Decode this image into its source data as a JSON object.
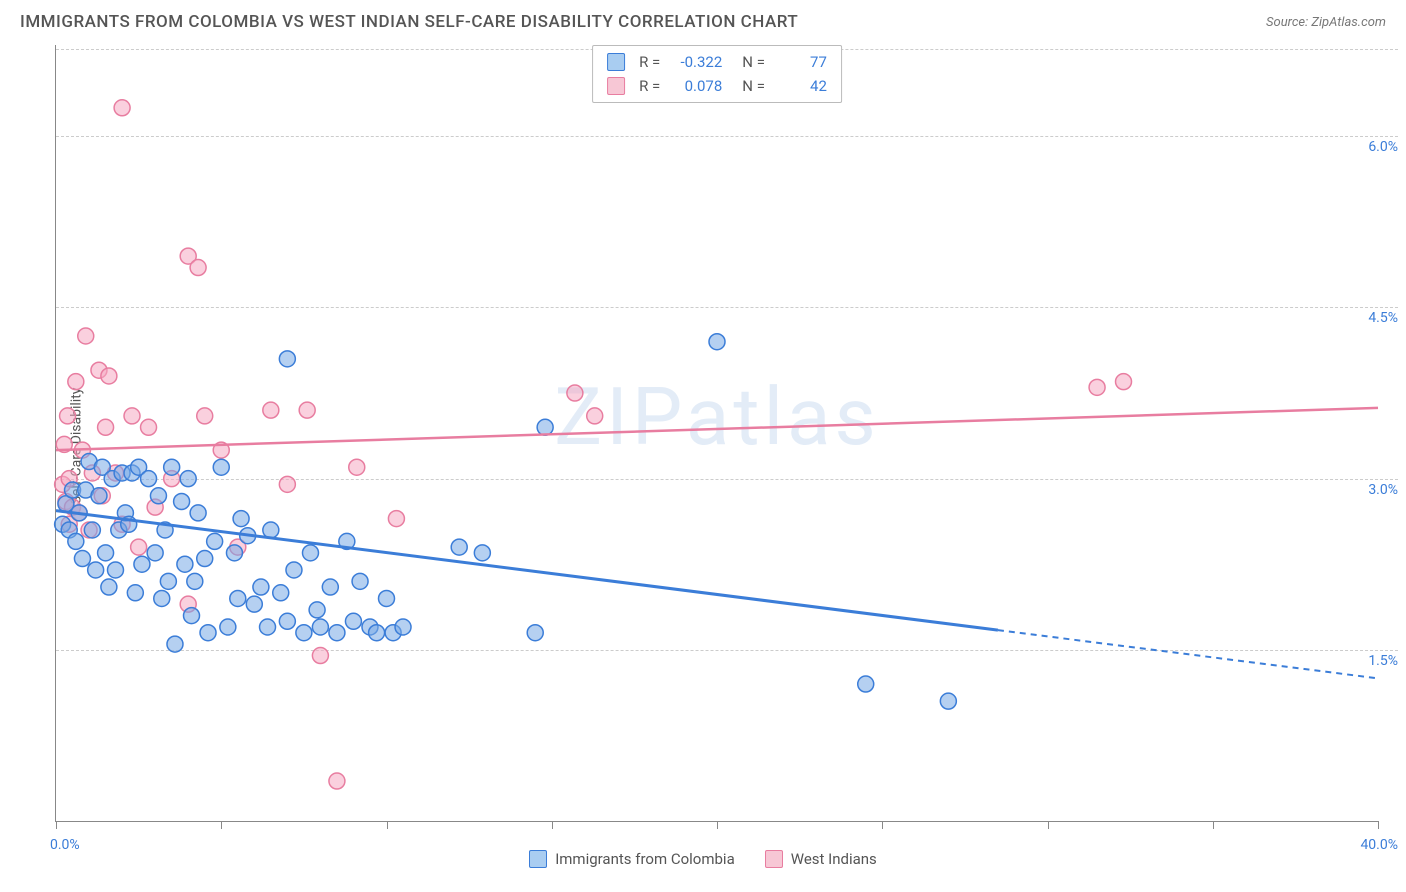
{
  "title": "IMMIGRANTS FROM COLOMBIA VS WEST INDIAN SELF-CARE DISABILITY CORRELATION CHART",
  "source_label": "Source: ZipAtlas.com",
  "watermark": "ZIPatlas",
  "ylabel": "Self-Care Disability",
  "axes": {
    "xlim": [
      0,
      40
    ],
    "ylim": [
      0,
      6.8
    ],
    "y_gridlines": [
      1.5,
      3.0,
      4.5,
      6.0
    ],
    "y_tick_labels": [
      "1.5%",
      "3.0%",
      "4.5%",
      "6.0%"
    ],
    "x_ticks": [
      0,
      5,
      10,
      15,
      20,
      25,
      30,
      35,
      40
    ],
    "x_min_label": "0.0%",
    "x_max_label": "40.0%",
    "grid_color": "#cccccc"
  },
  "legend_top": {
    "series": [
      {
        "swatch_fill": "#a9cdf1",
        "swatch_border": "#3b7dd8",
        "R": "-0.322",
        "N": "77"
      },
      {
        "swatch_fill": "#f7c7d5",
        "swatch_border": "#e87da0",
        "R": "0.078",
        "N": "42"
      }
    ],
    "r_label": "R =",
    "n_label": "N ="
  },
  "legend_bottom": {
    "items": [
      {
        "swatch_fill": "#a9cdf1",
        "swatch_border": "#3b7dd8",
        "label": "Immigrants from Colombia"
      },
      {
        "swatch_fill": "#f7c7d5",
        "swatch_border": "#e87da0",
        "label": "West Indians"
      }
    ]
  },
  "series": {
    "colombia": {
      "color": "#3b7dd8",
      "fill": "rgba(120,170,230,0.55)",
      "marker_r": 8,
      "regression": {
        "x1": 0,
        "y1": 2.72,
        "x_solid_end": 28.5,
        "x2": 40,
        "y2": 1.25
      },
      "points": [
        [
          0.2,
          2.6
        ],
        [
          0.3,
          2.78
        ],
        [
          0.4,
          2.55
        ],
        [
          0.5,
          2.9
        ],
        [
          0.6,
          2.45
        ],
        [
          0.7,
          2.7
        ],
        [
          0.8,
          2.3
        ],
        [
          0.9,
          2.9
        ],
        [
          1.0,
          3.15
        ],
        [
          1.1,
          2.55
        ],
        [
          1.3,
          2.85
        ],
        [
          1.4,
          3.1
        ],
        [
          1.5,
          2.35
        ],
        [
          1.6,
          2.05
        ],
        [
          1.7,
          3.0
        ],
        [
          1.8,
          2.2
        ],
        [
          1.9,
          2.55
        ],
        [
          2.0,
          3.05
        ],
        [
          2.1,
          2.7
        ],
        [
          2.3,
          3.05
        ],
        [
          2.4,
          2.0
        ],
        [
          2.5,
          3.1
        ],
        [
          2.6,
          2.25
        ],
        [
          2.8,
          3.0
        ],
        [
          3.0,
          2.35
        ],
        [
          3.1,
          2.85
        ],
        [
          3.3,
          2.55
        ],
        [
          3.4,
          2.1
        ],
        [
          3.5,
          3.1
        ],
        [
          3.6,
          1.55
        ],
        [
          3.8,
          2.8
        ],
        [
          3.9,
          2.25
        ],
        [
          4.0,
          3.0
        ],
        [
          4.1,
          1.8
        ],
        [
          4.3,
          2.7
        ],
        [
          4.5,
          2.3
        ],
        [
          4.6,
          1.65
        ],
        [
          4.8,
          2.45
        ],
        [
          5.0,
          3.1
        ],
        [
          5.2,
          1.7
        ],
        [
          5.4,
          2.35
        ],
        [
          5.5,
          1.95
        ],
        [
          5.8,
          2.5
        ],
        [
          6.0,
          1.9
        ],
        [
          6.2,
          2.05
        ],
        [
          6.4,
          1.7
        ],
        [
          6.5,
          2.55
        ],
        [
          6.8,
          2.0
        ],
        [
          7.0,
          4.05
        ],
        [
          7.0,
          1.75
        ],
        [
          7.2,
          2.2
        ],
        [
          7.5,
          1.65
        ],
        [
          7.7,
          2.35
        ],
        [
          7.9,
          1.85
        ],
        [
          8.0,
          1.7
        ],
        [
          8.3,
          2.05
        ],
        [
          8.5,
          1.65
        ],
        [
          8.8,
          2.45
        ],
        [
          9.0,
          1.75
        ],
        [
          9.2,
          2.1
        ],
        [
          9.5,
          1.7
        ],
        [
          9.7,
          1.65
        ],
        [
          10.0,
          1.95
        ],
        [
          10.2,
          1.65
        ],
        [
          10.5,
          1.7
        ],
        [
          12.2,
          2.4
        ],
        [
          12.9,
          2.35
        ],
        [
          14.5,
          1.65
        ],
        [
          14.8,
          3.45
        ],
        [
          20.0,
          4.2
        ],
        [
          24.5,
          1.2
        ],
        [
          27.0,
          1.05
        ],
        [
          1.2,
          2.2
        ],
        [
          2.2,
          2.6
        ],
        [
          3.2,
          1.95
        ],
        [
          4.2,
          2.1
        ],
        [
          5.6,
          2.65
        ]
      ]
    },
    "west_indian": {
      "color": "#e87da0",
      "fill": "rgba(245,170,195,0.55)",
      "marker_r": 8,
      "regression": {
        "x1": 0,
        "y1": 3.25,
        "x2": 40,
        "y2": 3.62
      },
      "points": [
        [
          0.2,
          2.95
        ],
        [
          0.25,
          3.3
        ],
        [
          0.3,
          2.8
        ],
        [
          0.35,
          3.55
        ],
        [
          0.4,
          3.0
        ],
        [
          0.5,
          2.75
        ],
        [
          0.6,
          3.85
        ],
        [
          0.7,
          2.7
        ],
        [
          0.8,
          3.25
        ],
        [
          0.9,
          4.25
        ],
        [
          1.0,
          2.55
        ],
        [
          1.1,
          3.05
        ],
        [
          1.3,
          3.95
        ],
        [
          1.4,
          2.85
        ],
        [
          1.5,
          3.45
        ],
        [
          1.6,
          3.9
        ],
        [
          1.8,
          3.05
        ],
        [
          2.0,
          2.6
        ],
        [
          2.0,
          6.25
        ],
        [
          2.3,
          3.55
        ],
        [
          2.5,
          2.4
        ],
        [
          2.8,
          3.45
        ],
        [
          3.0,
          2.75
        ],
        [
          3.5,
          3.0
        ],
        [
          4.0,
          1.9
        ],
        [
          4.0,
          4.95
        ],
        [
          4.3,
          4.85
        ],
        [
          4.5,
          3.55
        ],
        [
          5.0,
          3.25
        ],
        [
          5.5,
          2.4
        ],
        [
          6.5,
          3.6
        ],
        [
          7.0,
          2.95
        ],
        [
          7.6,
          3.6
        ],
        [
          8.0,
          1.45
        ],
        [
          9.1,
          3.1
        ],
        [
          10.3,
          2.65
        ],
        [
          15.7,
          3.75
        ],
        [
          16.3,
          3.55
        ],
        [
          31.5,
          3.8
        ],
        [
          32.3,
          3.85
        ],
        [
          0.4,
          2.6
        ],
        [
          8.5,
          0.35
        ]
      ]
    }
  },
  "colors": {
    "title": "#555555",
    "axis_value": "#3b7dd8",
    "watermark": "rgba(100,150,210,0.18)"
  }
}
